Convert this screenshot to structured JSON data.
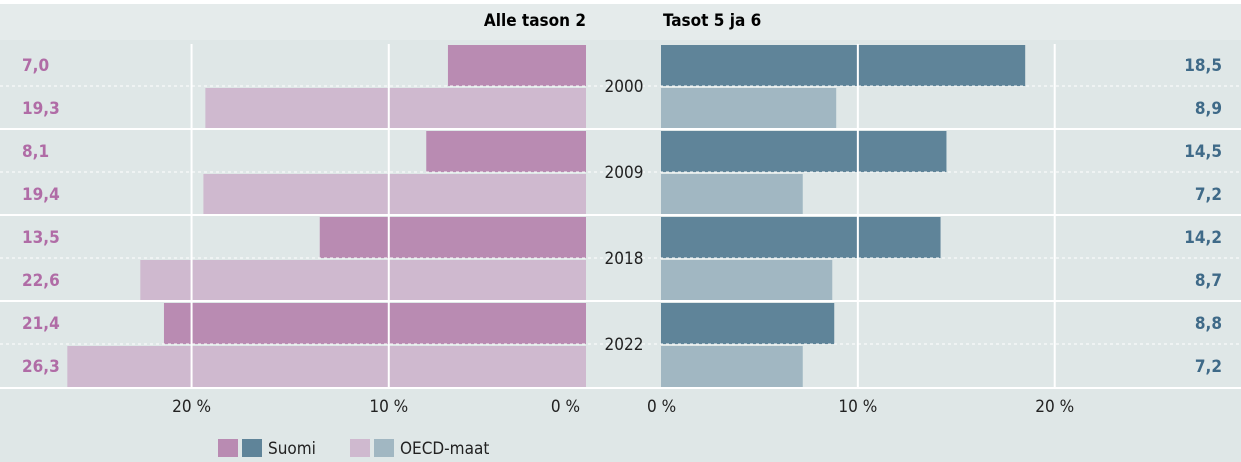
{
  "chart_data": {
    "type": "bar",
    "categories": [
      "2000",
      "2009",
      "2018",
      "2022"
    ],
    "legend": [
      "Suomi",
      "OECD-maat"
    ],
    "panels": [
      {
        "title": "Alle tason 2",
        "direction": "left",
        "label_color": "#b06ca6",
        "xlim": [
          0,
          28.7
        ],
        "xticks": [
          {
            "value": 20,
            "label": "20 %"
          },
          {
            "value": 10,
            "label": "10 %"
          },
          {
            "value": 0,
            "label": "0 %"
          }
        ],
        "series": [
          {
            "color": "#b98bb2",
            "values": [
              7.0,
              8.1,
              13.5,
              21.4
            ],
            "value_labels": [
              "7,0",
              "8,1",
              "13,5",
              "21,4"
            ]
          },
          {
            "color": "#cfb9cf",
            "values": [
              19.3,
              19.4,
              22.6,
              26.3
            ],
            "value_labels": [
              "19,3",
              "19,4",
              "22,6",
              "26,3"
            ]
          }
        ]
      },
      {
        "title": "Tasot 5 ja 6",
        "direction": "right",
        "label_color": "#3f6a88",
        "xlim": [
          0,
          28.7
        ],
        "xticks": [
          {
            "value": 0,
            "label": "0 %"
          },
          {
            "value": 10,
            "label": "10 %"
          },
          {
            "value": 20,
            "label": "20 %"
          }
        ],
        "series": [
          {
            "color": "#5f8499",
            "values": [
              18.5,
              14.5,
              14.2,
              8.8
            ],
            "value_labels": [
              "18,5",
              "14,5",
              "14,2",
              "8,8"
            ]
          },
          {
            "color": "#a1b7c2",
            "values": [
              8.9,
              7.2,
              8.7,
              7.2
            ],
            "value_labels": [
              "8,9",
              "7,2",
              "8,7",
              "7,2"
            ]
          }
        ]
      }
    ],
    "grid": true
  }
}
